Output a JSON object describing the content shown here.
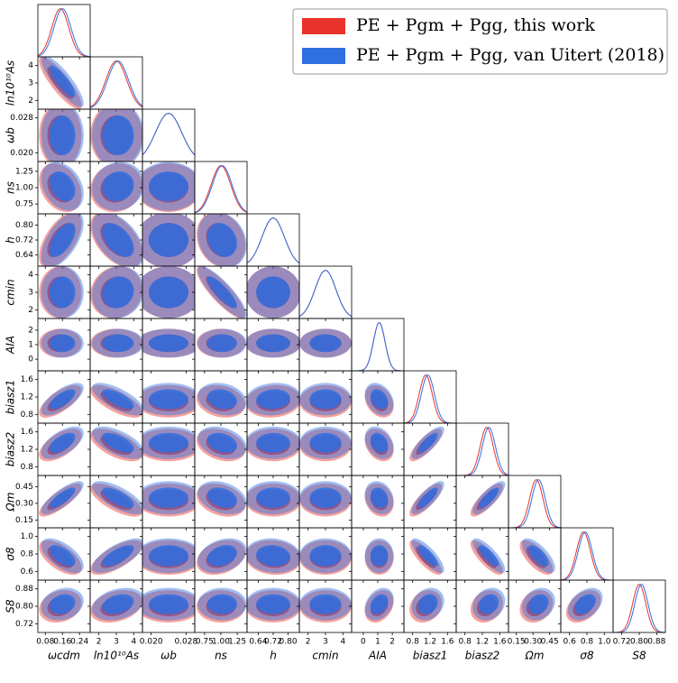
{
  "chart_data": {
    "type": "corner",
    "legend": "upper right",
    "series": [
      {
        "name": "PE + Pgm + Pgg, this work",
        "color": "#e8322b",
        "mean": [
          0.15,
          3.0,
          0.024,
          1.0,
          0.72,
          3.0,
          1.1,
          1.1,
          1.3,
          0.33,
          0.76,
          0.8
        ],
        "sd": [
          0.04,
          0.6,
          0.003,
          0.15,
          0.06,
          0.6,
          0.4,
          0.15,
          0.15,
          0.06,
          0.08,
          0.03
        ]
      },
      {
        "name": "PE + Pgm + Pgg, van Uitert (2018)",
        "color": "#2f6fe0",
        "mean": [
          0.16,
          3.1,
          0.024,
          1.02,
          0.72,
          3.0,
          1.1,
          1.15,
          1.35,
          0.35,
          0.78,
          0.81
        ],
        "sd": [
          0.04,
          0.6,
          0.003,
          0.15,
          0.06,
          0.6,
          0.4,
          0.15,
          0.15,
          0.06,
          0.08,
          0.03
        ]
      }
    ],
    "parameters": [
      {
        "label": "ωcdm",
        "lim": [
          0.045,
          0.29
        ],
        "ticks": [
          0.08,
          0.16,
          0.24
        ]
      },
      {
        "label": "ln10¹⁰As",
        "lim": [
          1.5,
          4.5
        ],
        "ticks": [
          2,
          3,
          4
        ]
      },
      {
        "label": "ωb",
        "lim": [
          0.018,
          0.03
        ],
        "ticks": [
          {
            "value": 0.02,
            "label": "0.020"
          },
          0.028
        ]
      },
      {
        "label": "ns",
        "lim": [
          0.6,
          1.4
        ],
        "ticks": [
          0.75,
          {
            "value": 1,
            "label": "1.00"
          },
          1.25
        ]
      },
      {
        "label": "h",
        "lim": [
          0.58,
          0.86
        ],
        "ticks": [
          0.64,
          0.72,
          {
            "value": 0.8,
            "label": "0.80"
          }
        ]
      },
      {
        "label": "cmin",
        "lim": [
          1.5,
          4.5
        ],
        "ticks": [
          2,
          3,
          4
        ]
      },
      {
        "label": "AIA",
        "lim": [
          -0.8,
          2.8
        ],
        "ticks": [
          0,
          1,
          2
        ]
      },
      {
        "label": "biasz1",
        "lim": [
          0.6,
          1.8
        ],
        "ticks": [
          0.8,
          1.2,
          1.6
        ]
      },
      {
        "label": "biasz2",
        "lim": [
          0.6,
          1.8
        ],
        "ticks": [
          0.8,
          1.2,
          1.6
        ]
      },
      {
        "label": "Ωm",
        "lim": [
          0.08,
          0.55
        ],
        "ticks": [
          0.15,
          {
            "value": 0.3,
            "label": "0.30"
          },
          0.45
        ]
      },
      {
        "label": "σ8",
        "lim": [
          0.5,
          1.1
        ],
        "ticks": [
          0.6,
          0.8,
          {
            "value": 1,
            "label": "1.0"
          }
        ]
      },
      {
        "label": "S8",
        "lim": [
          0.68,
          0.92
        ],
        "ticks": [
          0.72,
          {
            "value": 0.8,
            "label": "0.80"
          },
          0.88
        ]
      }
    ],
    "correlation": [
      [
        -0.85
      ],
      [
        0,
        0
      ],
      [
        -0.3,
        0.1,
        0
      ],
      [
        0.6,
        -0.5,
        0,
        -0.2
      ],
      [
        0,
        0.1,
        0,
        -0.85,
        0
      ],
      [
        0,
        0,
        0,
        0,
        0,
        0
      ],
      [
        0.7,
        -0.7,
        0,
        -0.2,
        0.1,
        0,
        -0.3
      ],
      [
        0.6,
        -0.6,
        0,
        -0.3,
        0,
        0,
        -0.3,
        0.8
      ],
      [
        0.8,
        -0.7,
        0,
        -0.3,
        0,
        0,
        -0.2,
        0.8,
        0.8
      ],
      [
        -0.6,
        0.7,
        0,
        0.3,
        -0.1,
        0,
        0,
        -0.8,
        -0.8,
        -0.7
      ],
      [
        0.2,
        0.3,
        0,
        0,
        0,
        0,
        0.3,
        0.2,
        0.2,
        0.2,
        0.4
      ]
    ]
  }
}
